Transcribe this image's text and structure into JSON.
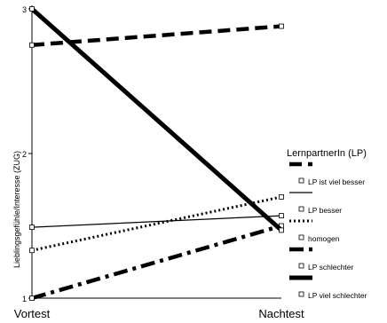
{
  "chart_data": {
    "type": "line",
    "title": "",
    "ylabel": "Lieblingsgefühle/Interesse (ZUG)",
    "categories": [
      "Vortest",
      "Nachtest"
    ],
    "y_ticks": [
      1,
      2,
      3
    ],
    "ylim": [
      1,
      3
    ],
    "grid": false,
    "legend": {
      "title": "LernpartnerIn (LP)",
      "placement": "right"
    },
    "series": [
      {
        "name": "LP ist viel besser",
        "values": [
          2.75,
          2.88
        ],
        "style": "dashed-thick"
      },
      {
        "name": "LP besser",
        "values": [
          1.49,
          1.57
        ],
        "style": "solid-thin"
      },
      {
        "name": "homogen",
        "values": [
          1.33,
          1.7
        ],
        "style": "dotted"
      },
      {
        "name": "LP schlechter",
        "values": [
          1.0,
          1.5
        ],
        "style": "dashdot"
      },
      {
        "name": "LP viel schlechter",
        "values": [
          3.0,
          1.47
        ],
        "style": "solid-thick"
      }
    ],
    "colors": {
      "line": "#000000",
      "marker_face": "#ffffff"
    }
  }
}
